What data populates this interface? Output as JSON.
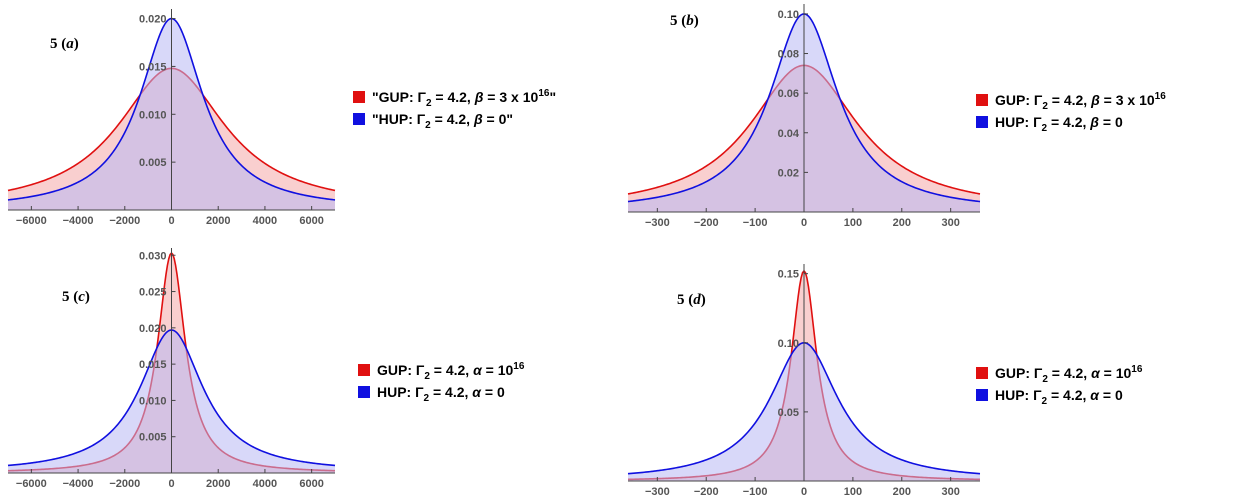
{
  "colors": {
    "red": "#e01010",
    "blue": "#1010e0",
    "red_fill": "#f4a8a8",
    "blue_fill": "#b8b8f4"
  },
  "chart_data": [
    {
      "type": "area",
      "panel_label_num": "5",
      "panel_label_letter": "a",
      "xlim": [
        -7000,
        7000
      ],
      "ylim": [
        0,
        0.021
      ],
      "xticks": [
        -6000,
        -4000,
        -2000,
        0,
        2000,
        4000,
        6000
      ],
      "xtick_labels": [
        "−6000",
        "−4000",
        "−2000",
        "0",
        "2000",
        "4000",
        "6000"
      ],
      "yticks": [
        0.005,
        0.01,
        0.015,
        0.02
      ],
      "ytick_labels": [
        "0.005",
        "0.010",
        "0.015",
        "0.020"
      ],
      "series": [
        {
          "name": "\"GUP: Γ2 = 4.2, β = 3 x 10^16\"",
          "color": "red",
          "peak": 0.0148,
          "width": 2800
        },
        {
          "name": "\"HUP: Γ2 = 4.2, β = 0\"",
          "color": "blue",
          "peak": 0.02,
          "width": 1650
        }
      ],
      "legend": [
        {
          "pre": "\"GUP: Γ",
          "sub": "2",
          "mid": " = 4.2, ",
          "greek": "β",
          "post": " = 3 x 10",
          "sup": "16",
          "end": "\"",
          "color": "red"
        },
        {
          "pre": "\"HUP: Γ",
          "sub": "2",
          "mid": " = 4.2, ",
          "greek": "β",
          "post": " = 0\"",
          "sup": "",
          "end": "",
          "color": "blue"
        }
      ]
    },
    {
      "type": "area",
      "panel_label_num": "5",
      "panel_label_letter": "b",
      "xlim": [
        -360,
        360
      ],
      "ylim": [
        0,
        0.105
      ],
      "xticks": [
        -300,
        -200,
        -100,
        0,
        100,
        200,
        300
      ],
      "xtick_labels": [
        "−300",
        "−200",
        "−100",
        "0",
        "100",
        "200",
        "300"
      ],
      "yticks": [
        0.02,
        0.04,
        0.06,
        0.08,
        0.1
      ],
      "ytick_labels": [
        "0.02",
        "0.04",
        "0.06",
        "0.08",
        "0.10"
      ],
      "series": [
        {
          "name": "GUP: Γ2 = 4.2, β = 3 x 10^16",
          "color": "red",
          "peak": 0.074,
          "width": 135
        },
        {
          "name": "HUP: Γ2 = 4.2, β = 0",
          "color": "blue",
          "peak": 0.1,
          "width": 85
        }
      ],
      "legend": [
        {
          "pre": "GUP: Γ",
          "sub": "2",
          "mid": " = 4.2, ",
          "greek": "β",
          "post": " = 3 x 10",
          "sup": "16",
          "end": "",
          "color": "red"
        },
        {
          "pre": "HUP: Γ",
          "sub": "2",
          "mid": " = 4.2, ",
          "greek": "β",
          "post": " = 0",
          "sup": "",
          "end": "",
          "color": "blue"
        }
      ]
    },
    {
      "type": "area",
      "panel_label_num": "5",
      "panel_label_letter": "c",
      "xlim": [
        -7000,
        7000
      ],
      "ylim": [
        0,
        0.031
      ],
      "xticks": [
        -6000,
        -4000,
        -2000,
        0,
        2000,
        4000,
        6000
      ],
      "xtick_labels": [
        "−6000",
        "−4000",
        "−2000",
        "0",
        "2000",
        "4000",
        "6000"
      ],
      "yticks": [
        0.005,
        0.01,
        0.015,
        0.02,
        0.025,
        0.03
      ],
      "ytick_labels": [
        "0.005",
        "0.010",
        "0.015",
        "0.020",
        "0.025",
        "0.030"
      ],
      "series": [
        {
          "name": "GUP: Γ2 = 4.2, α = 10^16",
          "color": "red",
          "peak": 0.0303,
          "width": 720
        },
        {
          "name": "HUP: Γ2 = 4.2, α = 0",
          "color": "blue",
          "peak": 0.0197,
          "width": 1650
        }
      ],
      "legend": [
        {
          "pre": "GUP: Γ",
          "sub": "2",
          "mid": " = 4.2, ",
          "greek": "α",
          "post": " = 10",
          "sup": "16",
          "end": "",
          "color": "red"
        },
        {
          "pre": "HUP: Γ",
          "sub": "2",
          "mid": " = 4.2, ",
          "greek": "α",
          "post": " = 0",
          "sup": "",
          "end": "",
          "color": "blue"
        }
      ]
    },
    {
      "type": "area",
      "panel_label_num": "5",
      "panel_label_letter": "d",
      "xlim": [
        -360,
        360
      ],
      "ylim": [
        0,
        0.157
      ],
      "xticks": [
        -300,
        -200,
        -100,
        0,
        100,
        200,
        300
      ],
      "xtick_labels": [
        "−300",
        "−200",
        "−100",
        "0",
        "100",
        "200",
        "300"
      ],
      "yticks": [
        0.05,
        0.1,
        0.15
      ],
      "ytick_labels": [
        "0.05",
        "0.10",
        "0.15"
      ],
      "series": [
        {
          "name": "GUP: Γ2 = 4.2, α = 10^16",
          "color": "red",
          "peak": 0.152,
          "width": 32
        },
        {
          "name": "HUP: Γ2 = 4.2, α = 0",
          "color": "blue",
          "peak": 0.1,
          "width": 85
        }
      ],
      "legend": [
        {
          "pre": "GUP: Γ",
          "sub": "2",
          "mid": " = 4.2, ",
          "greek": "α",
          "post": " = 10",
          "sup": "16",
          "end": "",
          "color": "red"
        },
        {
          "pre": "HUP: Γ",
          "sub": "2",
          "mid": " = 4.2, ",
          "greek": "α",
          "post": " = 0",
          "sup": "",
          "end": "",
          "color": "blue"
        }
      ]
    }
  ]
}
